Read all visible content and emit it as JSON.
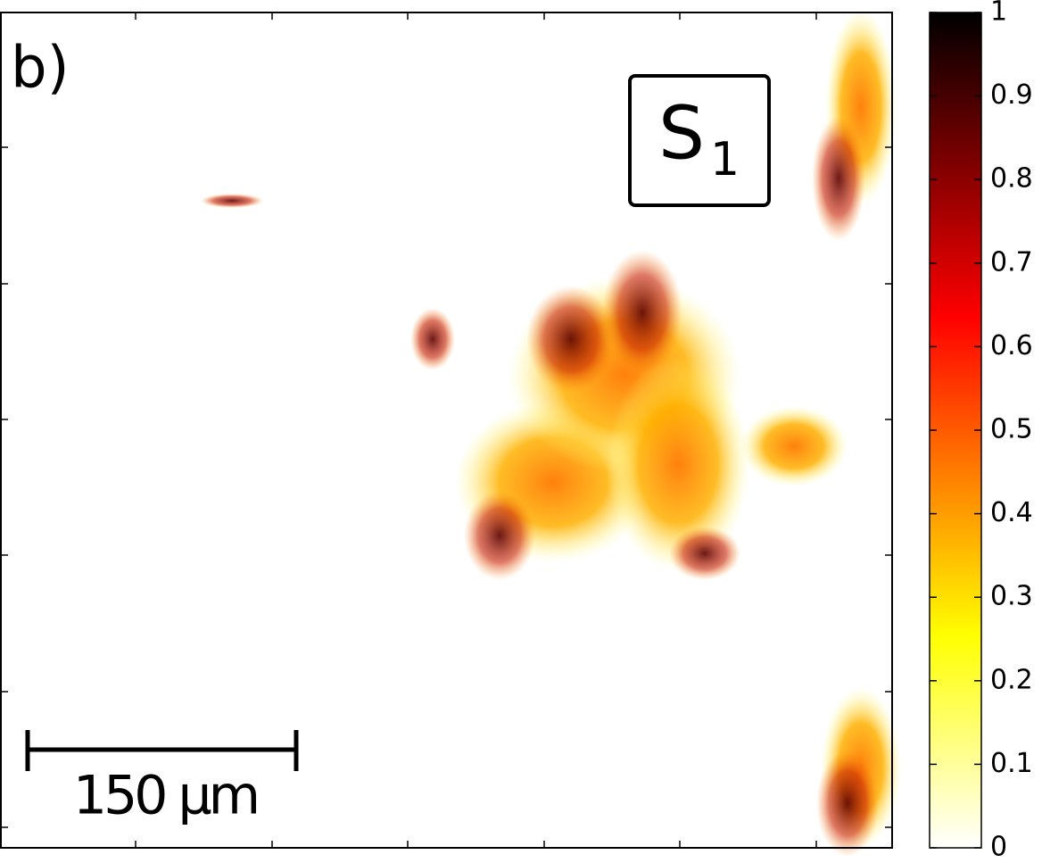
{
  "chart_data": {
    "type": "heatmap",
    "panel_label": "b)",
    "inset_label": "S",
    "inset_subscript": "1",
    "scale_bar_label": "150 µm",
    "colormap": [
      "#ffffff",
      "#ffff00",
      "#ff0000",
      "#000000"
    ],
    "colormap_stops": [
      0,
      0.254,
      0.635,
      1
    ],
    "clim": [
      0,
      1
    ],
    "cticks": [
      0,
      0.1,
      0.2,
      0.3,
      0.4,
      0.5,
      0.6,
      0.7,
      0.8,
      0.9,
      1
    ]
  }
}
